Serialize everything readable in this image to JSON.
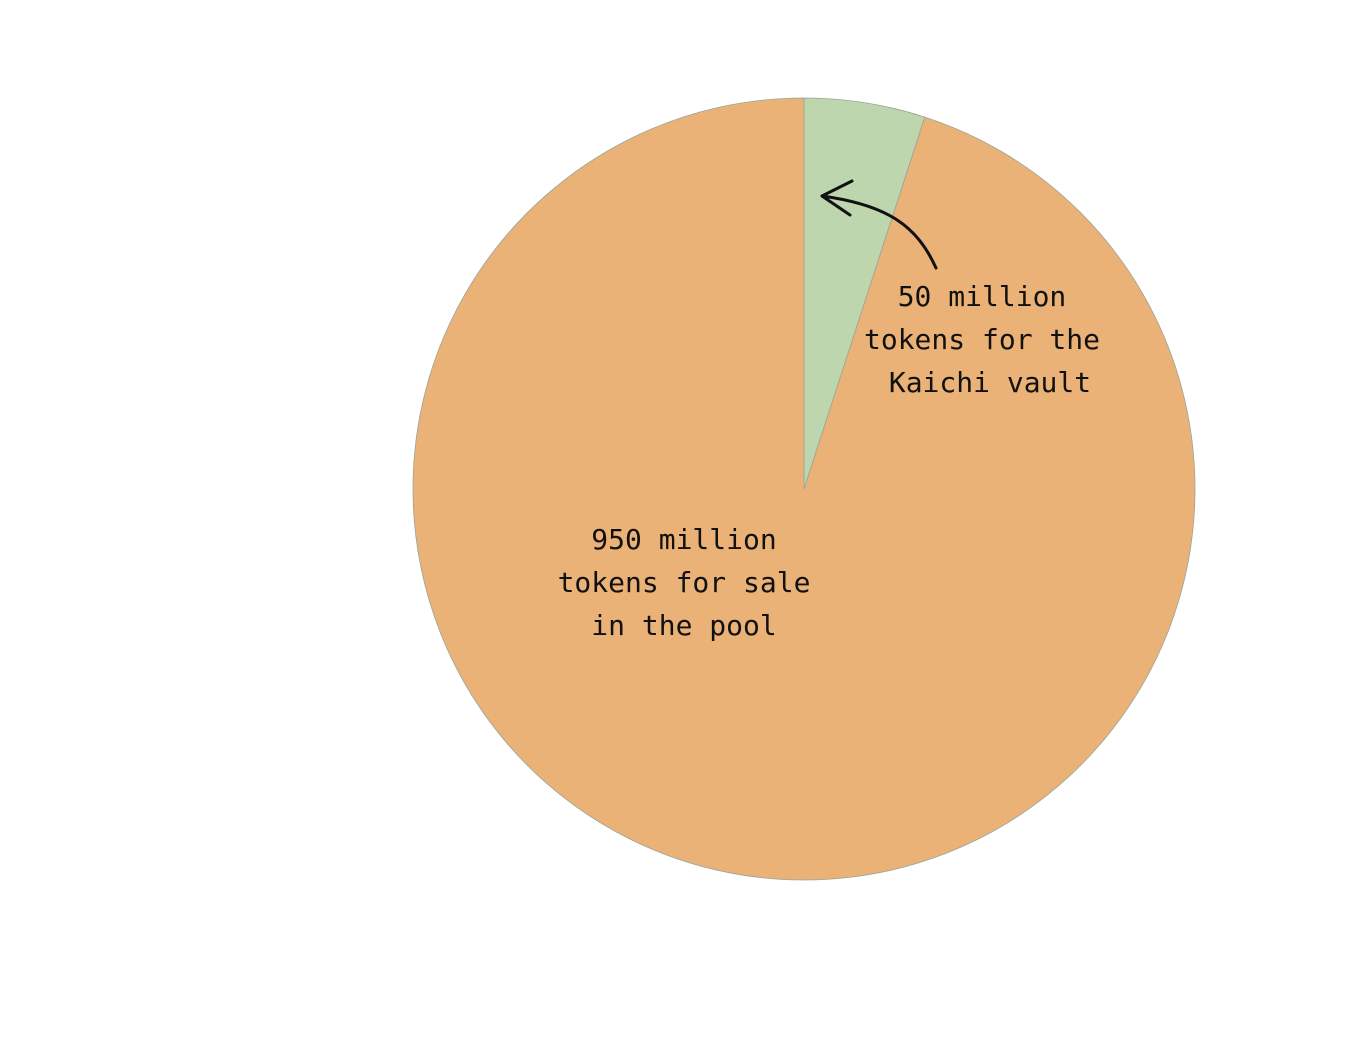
{
  "chart_data": {
    "type": "pie",
    "title": "",
    "start": "12 o'clock",
    "direction": "clockwise",
    "slices": [
      {
        "label_lines": [
          "50 million",
          "tokens for the",
          "Kaichi vault"
        ],
        "value": 50,
        "unit": "million tokens",
        "color": "#bdd6ad"
      },
      {
        "label_lines": [
          "950 million",
          "tokens for sale",
          "in the pool"
        ],
        "value": 950,
        "unit": "million tokens",
        "color": "#eab276"
      }
    ],
    "annotations": [
      {
        "type": "arrow",
        "points_to": "slice-0"
      }
    ]
  }
}
